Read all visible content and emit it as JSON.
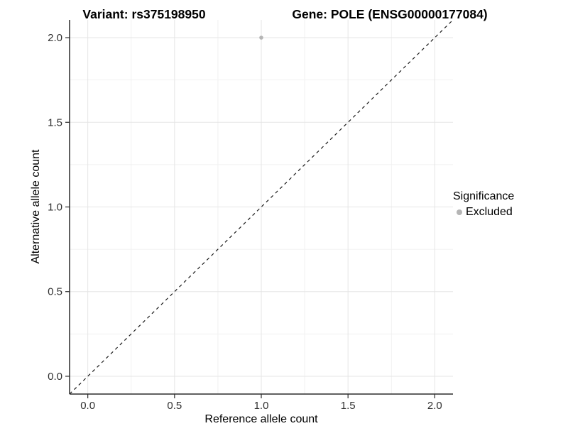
{
  "chart_data": {
    "type": "scatter",
    "title_left": "Variant: rs375198950",
    "title_right": "Gene: POLE (ENSG00000177084)",
    "xlabel": "Reference allele count",
    "ylabel": "Alternative allele count",
    "x_ticks": [
      "0.0",
      "0.5",
      "1.0",
      "1.5",
      "2.0"
    ],
    "y_ticks": [
      "0.0",
      "0.5",
      "1.0",
      "1.5",
      "2.0"
    ],
    "xlim": [
      -0.105,
      2.105
    ],
    "ylim": [
      -0.105,
      2.105
    ],
    "grid": true,
    "legend_position": "right",
    "series": [
      {
        "name": "Excluded",
        "color": "#b5b5b5",
        "points": [
          {
            "x": 1.0,
            "y": 2.0
          }
        ]
      }
    ],
    "reference_line": {
      "type": "identity",
      "equation": "y = x",
      "style": "dashed",
      "color": "#1a1a1a"
    },
    "legend": {
      "title": "Significance",
      "items": [
        {
          "label": "Excluded",
          "color": "#b5b5b5"
        }
      ]
    },
    "colors": {
      "background": "#ffffff",
      "grid_major": "#e5e5e5",
      "grid_minor": "#f1f1f1",
      "axis_line": "#2b2b2b",
      "tick_label": "#303030",
      "point": "#b5b5b5"
    }
  }
}
